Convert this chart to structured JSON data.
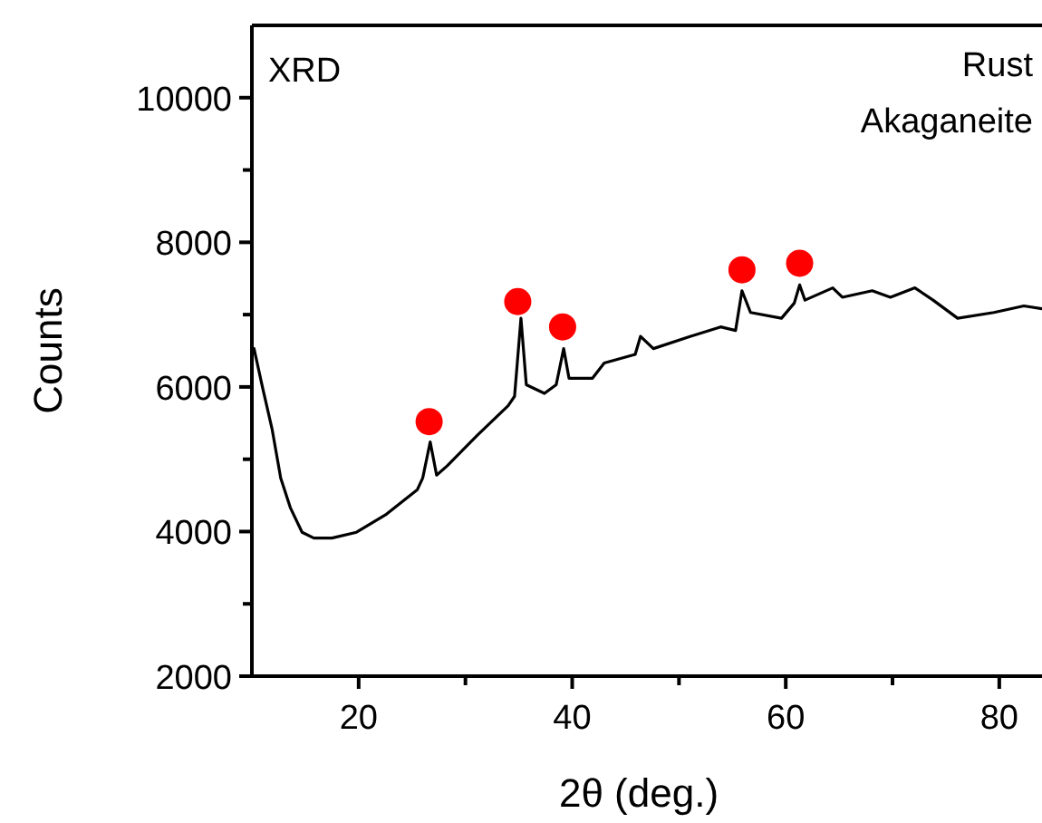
{
  "chart_data": {
    "type": "line",
    "xlabel": "2θ (deg.)",
    "ylabel": "Counts",
    "xlim": [
      10,
      84
    ],
    "ylim": [
      2000,
      11000
    ],
    "xticks": [
      20,
      {
        "value": 30,
        "label": null
      },
      40,
      {
        "value": 50,
        "label": null
      },
      60,
      {
        "value": 70,
        "label": null
      },
      80
    ],
    "yticks": [
      2000,
      {
        "value": 3000,
        "label": null
      },
      4000,
      {
        "value": 5000,
        "label": null
      },
      6000,
      {
        "value": 7000,
        "label": null
      },
      8000,
      {
        "value": 9000,
        "label": null
      },
      10000
    ],
    "grid": false,
    "annotations": [
      "XRD",
      "Rust",
      "Akaganeite"
    ],
    "series": [
      {
        "color": "#000000",
        "marker": "none",
        "x": [
          10.2,
          11.0,
          11.9,
          12.7,
          13.6,
          14.7,
          15.8,
          17.5,
          19.8,
          22.6,
          25.5,
          26.0,
          26.7,
          27.3,
          28.3,
          31.1,
          34.0,
          34.6,
          35.2,
          35.7,
          37.4,
          38.5,
          39.2,
          39.7,
          41.9,
          43.0,
          45.9,
          46.4,
          47.6,
          51.1,
          53.9,
          55.3,
          55.9,
          56.7,
          59.6,
          60.8,
          61.3,
          61.8,
          64.4,
          65.3,
          68.1,
          69.8,
          72.1,
          73.8,
          76.1,
          79.5,
          82.3,
          84.0
        ],
        "values": [
          6530,
          5990,
          5410,
          4740,
          4330,
          3990,
          3910,
          3910,
          3990,
          4240,
          4580,
          4740,
          5240,
          4780,
          4910,
          5330,
          5740,
          5870,
          6950,
          6030,
          5910,
          6030,
          6530,
          6120,
          6120,
          6330,
          6450,
          6700,
          6530,
          6700,
          6830,
          6780,
          7330,
          7030,
          6950,
          7160,
          7410,
          7200,
          7370,
          7240,
          7330,
          7240,
          7370,
          7200,
          6950,
          7030,
          7120,
          7080
        ]
      },
      {
        "type": "scatter",
        "color": "#ff0000",
        "marker": "circle",
        "x": [
          26.6,
          34.9,
          39.1,
          55.9,
          61.3
        ],
        "values": [
          5520,
          7180,
          6830,
          7620,
          7710
        ]
      }
    ]
  }
}
